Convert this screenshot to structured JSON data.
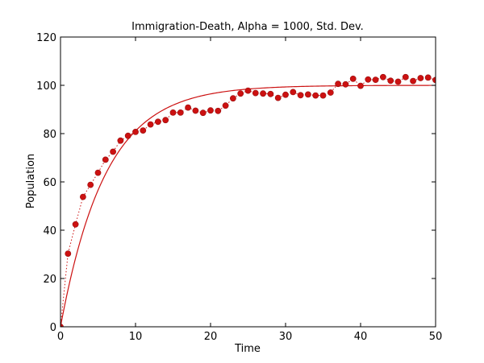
{
  "chart_data": {
    "type": "line",
    "title": "Immigration-Death, Alpha = 1000, Std. Dev.",
    "xlabel": "Time",
    "ylabel": "Population",
    "xlim": [
      0,
      50
    ],
    "ylim": [
      0,
      120
    ],
    "xticks": [
      0,
      10,
      20,
      30,
      40,
      50
    ],
    "yticks": [
      0,
      20,
      40,
      60,
      80,
      100,
      120
    ],
    "grid": false,
    "legend": "none",
    "colors": {
      "series": "#cc1111",
      "axes": "#000000",
      "background": "#ffffff"
    },
    "series": [
      {
        "style": "markers-dotted",
        "x": [
          0,
          1,
          2,
          3,
          4,
          5,
          6,
          7,
          8,
          9,
          10,
          11,
          12,
          13,
          14,
          15,
          16,
          17,
          18,
          19,
          20,
          21,
          22,
          23,
          24,
          25,
          26,
          27,
          28,
          29,
          30,
          31,
          32,
          33,
          34,
          35,
          36,
          37,
          38,
          39,
          40,
          41,
          42,
          43,
          44,
          45,
          46,
          47,
          48,
          49,
          50
        ],
        "values": [
          0,
          30.3,
          42.4,
          53.8,
          58.8,
          63.8,
          69.2,
          72.5,
          77.1,
          79.1,
          80.7,
          81.3,
          83.8,
          84.9,
          85.6,
          88.7,
          88.7,
          90.8,
          89.5,
          88.6,
          89.6,
          89.4,
          91.6,
          94.6,
          96.6,
          97.8,
          96.8,
          96.6,
          96.4,
          94.8,
          96.1,
          97.2,
          95.9,
          96.2,
          95.8,
          95.8,
          97.0,
          100.6,
          100.4,
          102.7,
          99.8,
          102.4,
          102.3,
          103.4,
          101.9,
          101.5,
          103.4,
          101.8,
          103.0,
          103.2,
          102.2
        ]
      },
      {
        "style": "solid-line",
        "function": "100*(1-exp(-t/6))"
      }
    ]
  }
}
